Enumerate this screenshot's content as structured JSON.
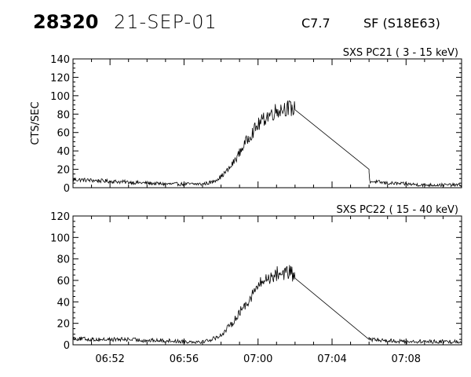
{
  "header": {
    "event_id": "28320",
    "date": "21-SEP-01",
    "flare_class": "C7.7",
    "flare_location": "SF (S18E63)"
  },
  "chart_data": [
    {
      "type": "line",
      "title": "SXS PC21  (  3 - 15 keV)",
      "ylabel": "CTS/SEC",
      "xlabel": "",
      "xlim": [
        "06:50",
        "07:11"
      ],
      "ylim": [
        0,
        140
      ],
      "yticks": [
        0,
        20,
        40,
        60,
        80,
        100,
        120,
        140
      ],
      "xtick_labels": [],
      "grid": false,
      "series": [
        {
          "x": [
            "06:50:00",
            "06:51:00",
            "06:52:00",
            "06:53:00",
            "06:54:00",
            "06:55:00",
            "06:56:00",
            "06:57:00",
            "06:57:30",
            "06:58:00",
            "06:58:30",
            "06:59:00",
            "06:59:30",
            "07:00:00",
            "07:00:30",
            "07:01:00",
            "07:01:30",
            "07:02:00",
            "07:06:00",
            "07:06:00",
            "07:07:00",
            "07:08:00",
            "07:09:00",
            "07:10:00",
            "07:11:00"
          ],
          "y": [
            9,
            8,
            7,
            6,
            5,
            4,
            4,
            4,
            6,
            12,
            22,
            38,
            55,
            68,
            78,
            84,
            87,
            85,
            20,
            7,
            5,
            4,
            3,
            3,
            3
          ]
        }
      ]
    },
    {
      "type": "line",
      "title": "SXS PC22  ( 15 - 40 keV)",
      "ylabel": "",
      "xlabel": "",
      "xlim": [
        "06:50",
        "07:11"
      ],
      "ylim": [
        0,
        120
      ],
      "yticks": [
        0,
        20,
        40,
        60,
        80,
        100,
        120
      ],
      "xtick_labels": [
        "06:52",
        "06:56",
        "07:00",
        "07:04",
        "07:08"
      ],
      "grid": false,
      "series": [
        {
          "x": [
            "06:50:00",
            "06:51:00",
            "06:52:00",
            "06:53:00",
            "06:54:00",
            "06:55:00",
            "06:56:00",
            "06:57:00",
            "06:57:30",
            "06:58:00",
            "06:58:30",
            "06:59:00",
            "06:59:30",
            "07:00:00",
            "07:00:30",
            "07:01:00",
            "07:01:30",
            "07:02:00",
            "07:06:00",
            "07:06:00",
            "07:07:00",
            "07:08:00",
            "07:09:00",
            "07:10:00",
            "07:11:00"
          ],
          "y": [
            6,
            5,
            5,
            5,
            4,
            4,
            3,
            3,
            5,
            9,
            18,
            30,
            42,
            55,
            62,
            66,
            68,
            65,
            5,
            5,
            4,
            3,
            3,
            3,
            3
          ]
        }
      ]
    }
  ]
}
